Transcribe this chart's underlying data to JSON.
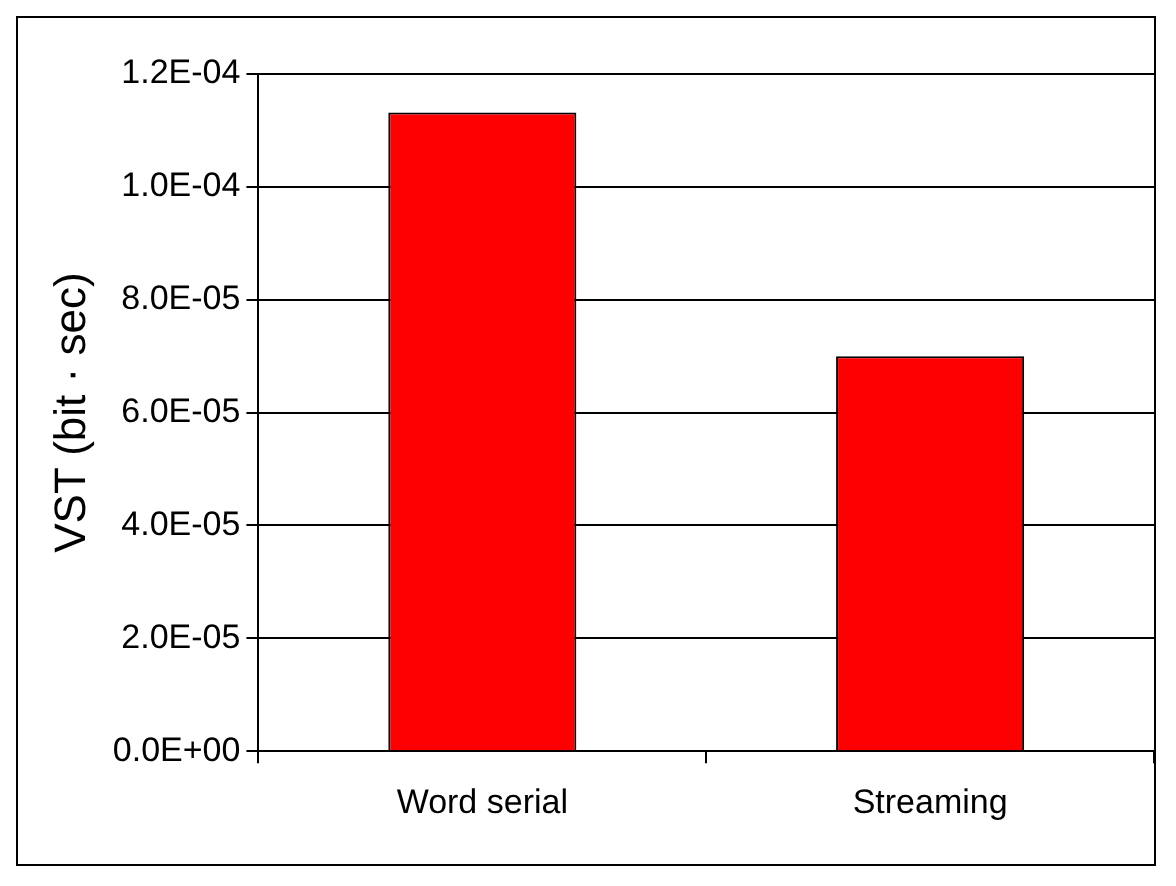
{
  "chart_data": {
    "type": "bar",
    "ylabel": "VST (bit · sec)",
    "categories": [
      "Word serial",
      "Streaming"
    ],
    "series": [
      {
        "color": "#ff0000",
        "values": [
          0.0001132,
          7e-05
        ]
      }
    ],
    "ylim": [
      0,
      0.00012
    ],
    "yticks": [
      {
        "value": 0,
        "label": "0.0E+00"
      },
      {
        "value": 2e-05,
        "label": "2.0E-05"
      },
      {
        "value": 4e-05,
        "label": "4.0E-05"
      },
      {
        "value": 6e-05,
        "label": "6.0E-05"
      },
      {
        "value": 8e-05,
        "label": "8.0E-05"
      },
      {
        "value": 0.0001,
        "label": "1.0E-04"
      },
      {
        "value": 0.00012,
        "label": "1.2E-04"
      }
    ],
    "grid": "y",
    "legend": false
  }
}
